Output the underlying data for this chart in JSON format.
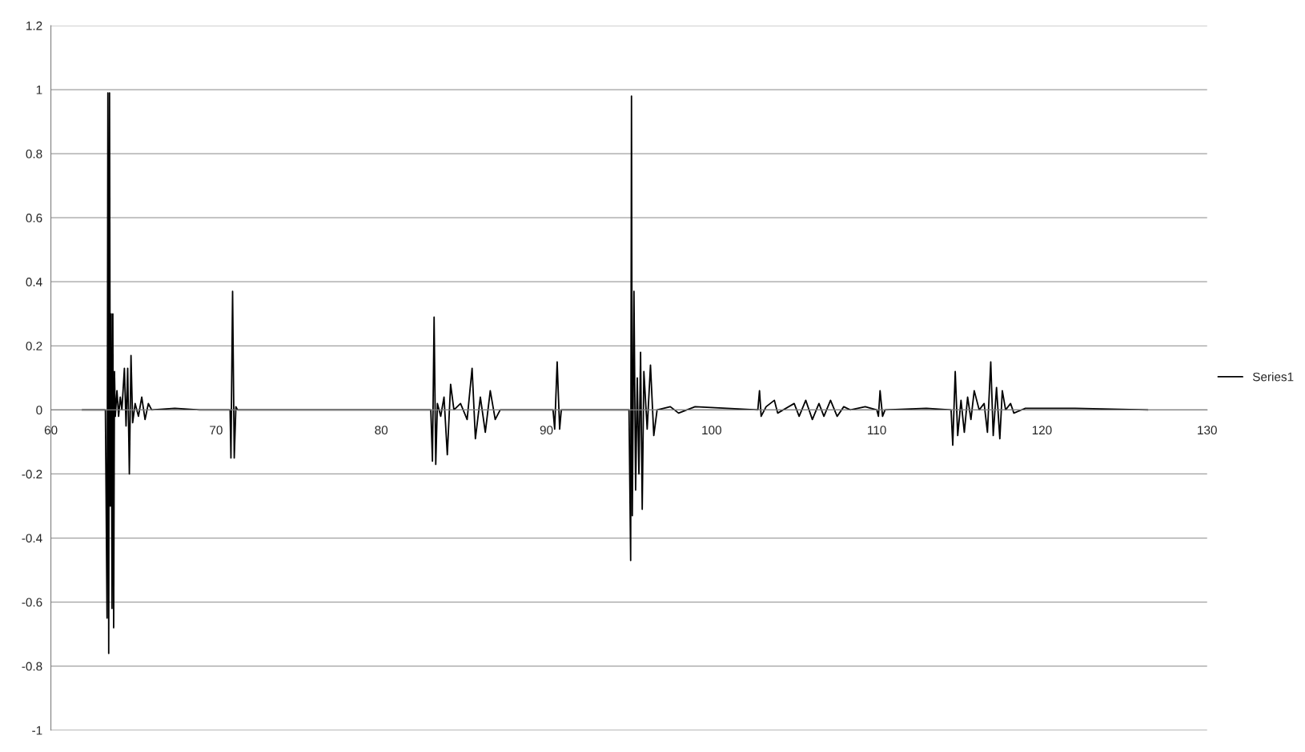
{
  "chart_data": {
    "type": "line",
    "xlim": [
      60,
      130
    ],
    "xticks": [
      60,
      70,
      80,
      90,
      100,
      110,
      120,
      130
    ],
    "ylim": [
      -1,
      1.2
    ],
    "yticks": [
      -1,
      -0.8,
      -0.6,
      -0.4,
      -0.2,
      0,
      0.2,
      0.4,
      0.6,
      0.8,
      1,
      1.2
    ],
    "grid": "y",
    "legend": "right",
    "marker": "none",
    "line_style": "solid",
    "series": [
      {
        "name": "Series1",
        "color": "#000000",
        "x": [
          61.9,
          63.3,
          63.4,
          63.45,
          63.5,
          63.55,
          63.6,
          63.65,
          63.7,
          63.75,
          63.8,
          63.85,
          63.9,
          64.0,
          64.1,
          64.2,
          64.3,
          64.45,
          64.55,
          64.65,
          64.75,
          64.85,
          64.95,
          65.1,
          65.3,
          65.5,
          65.7,
          65.9,
          66.1,
          67.5,
          69.0,
          70.85,
          70.9,
          71.0,
          71.1,
          71.2,
          71.3,
          80.0,
          83.0,
          83.1,
          83.2,
          83.3,
          83.4,
          83.6,
          83.8,
          84.0,
          84.2,
          84.4,
          84.8,
          85.2,
          85.5,
          85.7,
          86.0,
          86.3,
          86.6,
          86.9,
          87.2,
          90.4,
          90.5,
          90.65,
          90.8,
          90.9,
          95.0,
          95.1,
          95.15,
          95.2,
          95.3,
          95.4,
          95.5,
          95.6,
          95.7,
          95.8,
          95.9,
          96.1,
          96.3,
          96.5,
          96.7,
          97.5,
          98.0,
          99.0,
          102.8,
          102.9,
          103.0,
          103.3,
          103.8,
          104.0,
          105.0,
          105.3,
          105.7,
          106.1,
          106.5,
          106.8,
          107.2,
          107.6,
          108.0,
          108.4,
          109.3,
          110.0,
          110.1,
          110.2,
          110.35,
          110.5,
          113.0,
          114.5,
          114.6,
          114.75,
          114.9,
          115.1,
          115.3,
          115.5,
          115.7,
          115.9,
          116.2,
          116.5,
          116.7,
          116.9,
          117.05,
          117.25,
          117.45,
          117.6,
          117.8,
          118.1,
          118.3,
          119.0,
          122.0,
          126.4
        ],
        "values": [
          0,
          0,
          -0.65,
          0.99,
          -0.76,
          0.99,
          -0.3,
          0.3,
          -0.62,
          0.3,
          -0.68,
          0.12,
          -0.02,
          0.06,
          -0.02,
          0.04,
          0,
          0.13,
          -0.05,
          0.13,
          -0.2,
          0.17,
          -0.04,
          0.02,
          -0.02,
          0.04,
          -0.03,
          0.02,
          0,
          0.005,
          0,
          0,
          -0.15,
          0.37,
          -0.15,
          0.01,
          0,
          0,
          0,
          -0.16,
          0.29,
          -0.17,
          0.02,
          -0.02,
          0.04,
          -0.14,
          0.08,
          0,
          0.02,
          -0.03,
          0.13,
          -0.09,
          0.04,
          -0.07,
          0.06,
          -0.03,
          0,
          0,
          -0.06,
          0.15,
          -0.06,
          0,
          0,
          -0.47,
          0.98,
          -0.33,
          0.37,
          -0.25,
          0.1,
          -0.2,
          0.18,
          -0.31,
          0.12,
          -0.06,
          0.14,
          -0.08,
          0,
          0.01,
          -0.01,
          0.01,
          0,
          0.06,
          -0.02,
          0.01,
          0.03,
          -0.01,
          0.02,
          -0.02,
          0.03,
          -0.03,
          0.02,
          -0.02,
          0.03,
          -0.02,
          0.01,
          0,
          0.01,
          0,
          -0.02,
          0.06,
          -0.02,
          0,
          0.005,
          0,
          -0.11,
          0.12,
          -0.08,
          0.03,
          -0.07,
          0.04,
          -0.03,
          0.06,
          0,
          0.02,
          -0.07,
          0.15,
          -0.08,
          0.07,
          -0.09,
          0.06,
          0,
          0.02,
          -0.01,
          0.005,
          0.005,
          0
        ]
      }
    ]
  }
}
